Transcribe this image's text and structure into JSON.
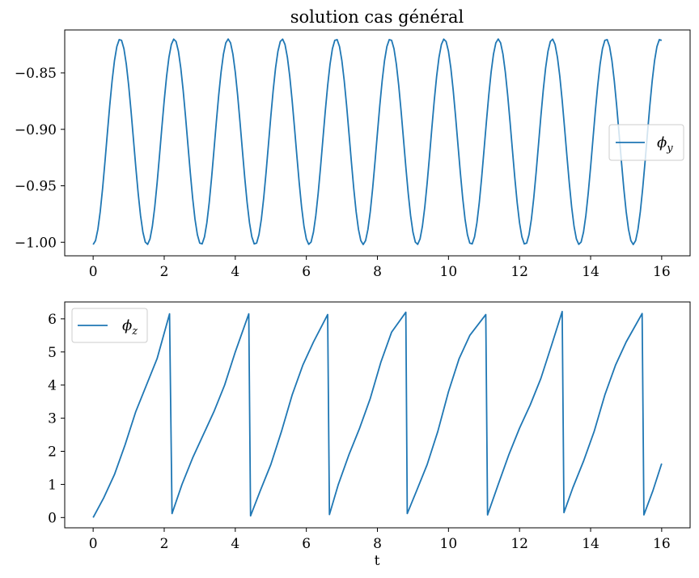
{
  "chart_data": [
    {
      "type": "line",
      "title": "solution cas général",
      "xlabel": "",
      "ylabel": "",
      "xlim": [
        -0.8,
        16.8
      ],
      "ylim": [
        -1.012,
        -0.812
      ],
      "xticks": [
        0,
        2,
        4,
        6,
        8,
        10,
        12,
        14,
        16
      ],
      "yticks": [
        -1.0,
        -0.95,
        -0.9,
        -0.85
      ],
      "ytick_labels": [
        "−1.00",
        "−0.95",
        "−0.90",
        "−0.85"
      ],
      "grid": false,
      "legend_position": "center-right",
      "series": [
        {
          "name": "ϕ_y",
          "color": "#1f77b4",
          "model": "oscillation",
          "x_range": [
            0,
            16
          ],
          "samples": 240,
          "min": -1.002,
          "max": -0.82,
          "period": 1.52
        }
      ]
    },
    {
      "type": "line",
      "title": "",
      "xlabel": "t",
      "ylabel": "",
      "xlim": [
        -0.8,
        16.8
      ],
      "ylim": [
        -0.31,
        6.51
      ],
      "xticks": [
        0,
        2,
        4,
        6,
        8,
        10,
        12,
        14,
        16
      ],
      "yticks": [
        0,
        1,
        2,
        3,
        4,
        5,
        6
      ],
      "ytick_labels": [
        "0",
        "1",
        "2",
        "3",
        "4",
        "5",
        "6"
      ],
      "grid": false,
      "legend_position": "upper-left",
      "series": [
        {
          "name": "ϕ_z",
          "color": "#1f77b4",
          "x": [
            0,
            0.3,
            0.6,
            0.9,
            1.2,
            1.5,
            1.8,
            2.15,
            2.22,
            2.5,
            2.8,
            3.1,
            3.4,
            3.7,
            4.0,
            4.38,
            4.43,
            4.7,
            5.0,
            5.3,
            5.6,
            5.9,
            6.2,
            6.6,
            6.65,
            6.9,
            7.2,
            7.5,
            7.8,
            8.1,
            8.4,
            8.8,
            8.84,
            9.1,
            9.4,
            9.7,
            10.0,
            10.3,
            10.6,
            11.05,
            11.1,
            11.4,
            11.7,
            12.0,
            12.3,
            12.6,
            12.9,
            13.2,
            13.25,
            13.5,
            13.8,
            14.1,
            14.4,
            14.7,
            15.0,
            15.45,
            15.5,
            15.75,
            16.0
          ],
          "y": [
            0.0,
            0.6,
            1.3,
            2.2,
            3.2,
            4.0,
            4.8,
            6.15,
            0.12,
            1.0,
            1.8,
            2.5,
            3.2,
            4.0,
            5.0,
            6.15,
            0.05,
            0.8,
            1.6,
            2.6,
            3.7,
            4.6,
            5.3,
            6.13,
            0.09,
            1.0,
            1.9,
            2.7,
            3.6,
            4.7,
            5.6,
            6.2,
            0.12,
            0.8,
            1.6,
            2.6,
            3.8,
            4.8,
            5.5,
            6.13,
            0.08,
            1.0,
            1.9,
            2.7,
            3.4,
            4.2,
            5.2,
            6.22,
            0.15,
            0.9,
            1.7,
            2.6,
            3.7,
            4.6,
            5.3,
            6.16,
            0.08,
            0.8,
            1.63
          ]
        }
      ]
    }
  ]
}
